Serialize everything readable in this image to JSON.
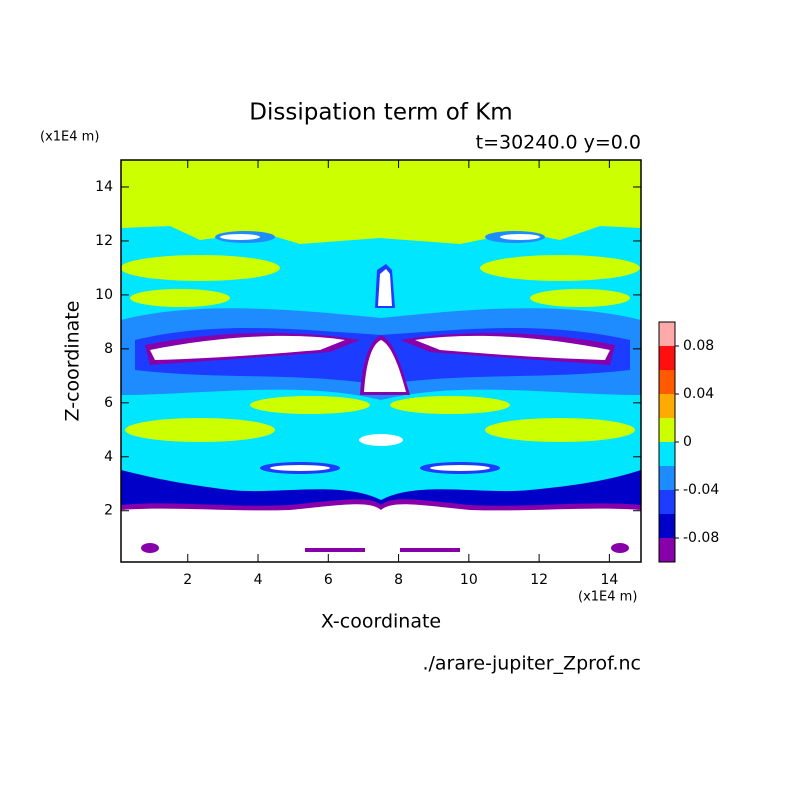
{
  "chart_data": {
    "type": "contour",
    "title": "Dissipation term of Km",
    "subtitle": "t=30240.0 y=0.0",
    "xlabel": "X-coordinate",
    "ylabel": "Z-coordinate",
    "x_unit": "(x1E4 m)",
    "y_unit": "(x1E4 m)",
    "source": "./arare-jupiter_Zprof.nc",
    "xlim": [
      0.1,
      14.9
    ],
    "ylim": [
      0.1,
      15
    ],
    "xticks": [
      2,
      4,
      6,
      8,
      10,
      12,
      14
    ],
    "yticks": [
      2,
      4,
      6,
      8,
      10,
      12,
      14
    ],
    "levels": [
      -0.1,
      -0.08,
      -0.06,
      -0.04,
      -0.02,
      0,
      0.02,
      0.04,
      0.06,
      0.08,
      0.1
    ],
    "colors": [
      "#8800aa",
      "#0000c8",
      "#1c3cff",
      "#1e8cff",
      "#00e6ff",
      "#ccff00",
      "#ffaa00",
      "#ff5a00",
      "#ff0f0f",
      "#ffaaaa"
    ],
    "colorbar_ticks": [
      -0.08,
      -0.04,
      0,
      0.04,
      0.08
    ]
  }
}
